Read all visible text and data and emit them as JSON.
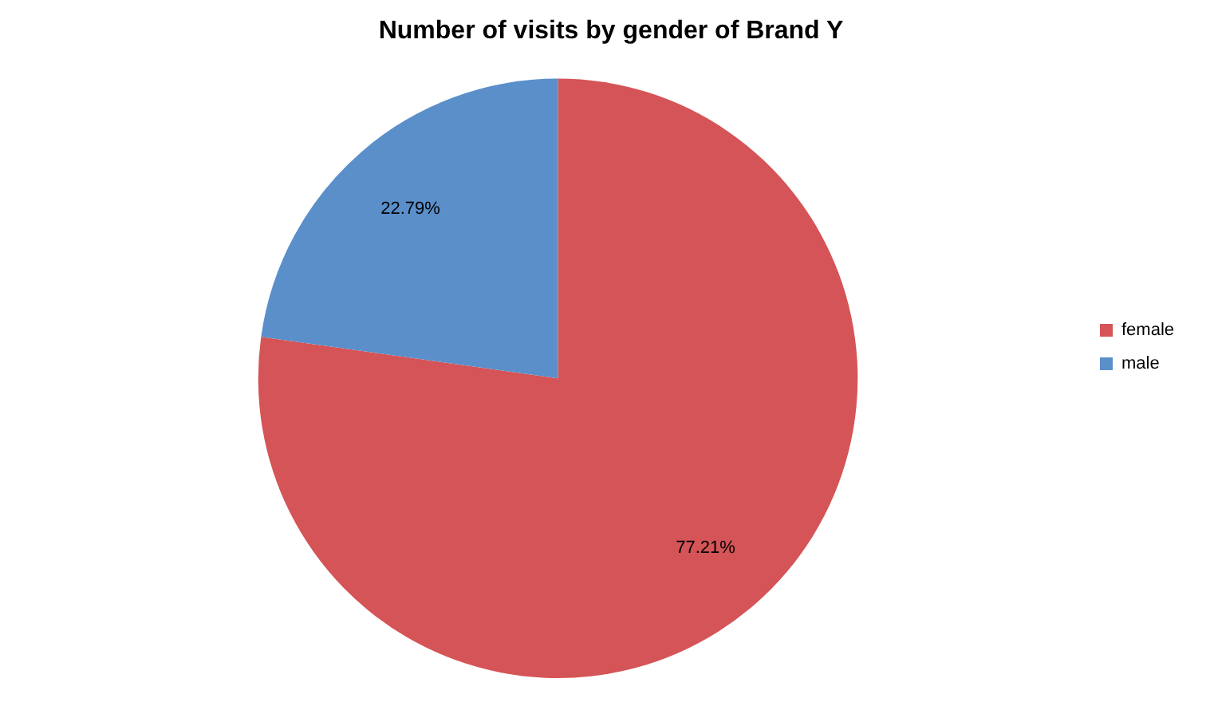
{
  "chart_data": {
    "type": "pie",
    "title": "Number of visits by gender of Brand Y",
    "categories": [
      "female",
      "male"
    ],
    "values": [
      77.21,
      22.79
    ],
    "colors": [
      "#d55457",
      "#5a8fca"
    ],
    "value_labels": [
      "77.21%",
      "22.79%"
    ],
    "legend": "right"
  }
}
